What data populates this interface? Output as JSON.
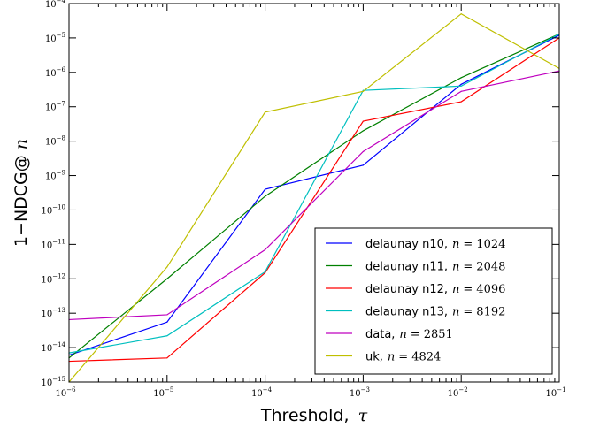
{
  "chart_data": {
    "type": "line",
    "xlabel": "Threshold,",
    "xlabel_symbol": "τ",
    "ylabel": "1−NDCG@",
    "ylabel_symbol": "n",
    "x_scale": "log",
    "y_scale": "log",
    "xlim": [
      1e-06,
      0.1
    ],
    "ylim": [
      1e-15,
      0.0001
    ],
    "x_ticks": [
      {
        "base": "10",
        "exp": "−6",
        "value": 1e-06
      },
      {
        "base": "10",
        "exp": "−5",
        "value": 1e-05
      },
      {
        "base": "10",
        "exp": "−4",
        "value": 0.0001
      },
      {
        "base": "10",
        "exp": "−3",
        "value": 0.001
      },
      {
        "base": "10",
        "exp": "−2",
        "value": 0.01
      },
      {
        "base": "10",
        "exp": "−1",
        "value": 0.1
      }
    ],
    "y_ticks": [
      {
        "base": "10",
        "exp": "−15",
        "value": 1e-15
      },
      {
        "base": "10",
        "exp": "−14",
        "value": 1e-14
      },
      {
        "base": "10",
        "exp": "−13",
        "value": 1e-13
      },
      {
        "base": "10",
        "exp": "−12",
        "value": 1e-12
      },
      {
        "base": "10",
        "exp": "−11",
        "value": 1e-11
      },
      {
        "base": "10",
        "exp": "−10",
        "value": 1e-10
      },
      {
        "base": "10",
        "exp": "−9",
        "value": 1e-09
      },
      {
        "base": "10",
        "exp": "−8",
        "value": 1e-08
      },
      {
        "base": "10",
        "exp": "−7",
        "value": 1e-07
      },
      {
        "base": "10",
        "exp": "−6",
        "value": 1e-06
      },
      {
        "base": "10",
        "exp": "−5",
        "value": 1e-05
      },
      {
        "base": "10",
        "exp": "−4",
        "value": 0.0001
      }
    ],
    "legend_placement": "lower-right",
    "grid": false,
    "x": [
      1e-06,
      1e-05,
      0.0001,
      0.001,
      0.01,
      0.1
    ],
    "series": [
      {
        "name": "delaunay n10,",
        "n_label": "n",
        "n_value": "1024",
        "color": "#0000ff",
        "values": [
          6e-15,
          5.5e-14,
          4e-10,
          2e-09,
          4.5e-07,
          1.2e-05
        ]
      },
      {
        "name": "delaunay n11,",
        "n_label": "n",
        "n_value": "2048",
        "color": "#008000",
        "values": [
          5e-15,
          1e-12,
          2.5e-10,
          2e-08,
          7e-07,
          1.3e-05
        ]
      },
      {
        "name": "delaunay n12,",
        "n_label": "n",
        "n_value": "4096",
        "color": "#ff0000",
        "values": [
          4e-15,
          5e-15,
          1.5e-12,
          3.8e-08,
          1.4e-07,
          1e-05
        ]
      },
      {
        "name": "delaunay n13,",
        "n_label": "n",
        "n_value": "8192",
        "color": "#00bfbf",
        "values": [
          7e-15,
          2.2e-14,
          1.6e-12,
          3e-07,
          4e-07,
          1.3e-05
        ]
      },
      {
        "name": "data,",
        "n_label": "n",
        "n_value": "2851",
        "color": "#bf00bf",
        "values": [
          6.5e-14,
          9e-14,
          7e-12,
          5e-09,
          2.8e-07,
          1.1e-06
        ]
      },
      {
        "name": "uk,",
        "n_label": "n",
        "n_value": "4824",
        "color": "#bfbf00",
        "values": [
          1e-15,
          2.2e-12,
          7e-08,
          2.8e-07,
          5e-05,
          1.3e-06
        ]
      }
    ]
  }
}
